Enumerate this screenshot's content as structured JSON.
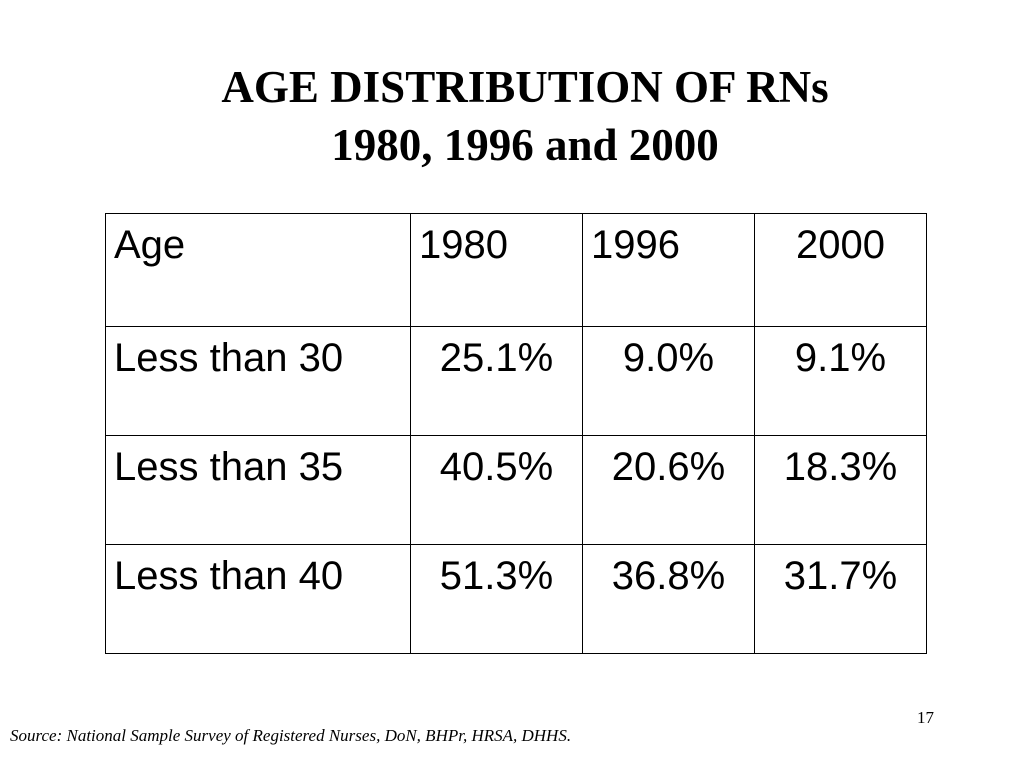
{
  "title": {
    "line1": "AGE DISTRIBUTION OF RNs",
    "line2": "1980, 1996 and 2000"
  },
  "table": {
    "headers": [
      "Age",
      "1980",
      "1996",
      "2000"
    ],
    "rows": [
      {
        "label": "Less than 30",
        "values": [
          "25.1%",
          "9.0%",
          "9.1%"
        ]
      },
      {
        "label": "Less than 35",
        "values": [
          "40.5%",
          "20.6%",
          "18.3%"
        ]
      },
      {
        "label": "Less than 40",
        "values": [
          "51.3%",
          "36.8%",
          "31.7%"
        ]
      }
    ]
  },
  "page_number": "17",
  "source": "Source: National Sample Survey of Registered Nurses, DoN, BHPr, HRSA, DHHS."
}
